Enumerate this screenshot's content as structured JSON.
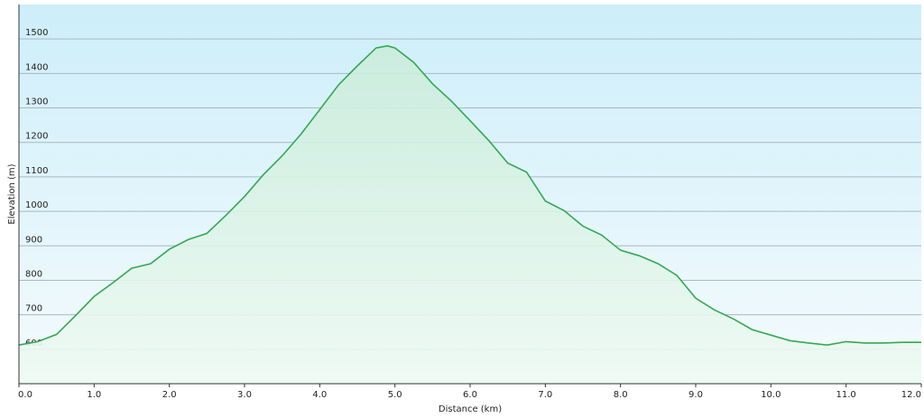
{
  "chart_data": {
    "type": "area",
    "x_label": "Distance (km)",
    "y_label": "Elevation (m)",
    "x": [
      0,
      0.25,
      0.5,
      0.75,
      1.0,
      1.25,
      1.5,
      1.75,
      2.0,
      2.25,
      2.5,
      2.75,
      3.0,
      3.25,
      3.5,
      3.75,
      4.0,
      4.25,
      4.5,
      4.75,
      4.9,
      5.0,
      5.25,
      5.5,
      5.75,
      6.0,
      6.25,
      6.5,
      6.75,
      7.0,
      7.25,
      7.5,
      7.75,
      8.0,
      8.25,
      8.5,
      8.75,
      9.0,
      9.25,
      9.5,
      9.75,
      10.0,
      10.25,
      10.5,
      10.75,
      11.0,
      11.25,
      11.5,
      11.75,
      12.0
    ],
    "values": [
      612,
      622,
      643,
      697,
      753,
      793,
      835,
      848,
      890,
      918,
      936,
      988,
      1043,
      1106,
      1161,
      1224,
      1295,
      1367,
      1422,
      1474,
      1480,
      1474,
      1432,
      1370,
      1320,
      1263,
      1205,
      1140,
      1114,
      1030,
      1002,
      957,
      931,
      887,
      871,
      848,
      814,
      748,
      714,
      688,
      657,
      641,
      625,
      618,
      612,
      622,
      618,
      618,
      620,
      620
    ],
    "color": "#34a853",
    "xlim": [
      0,
      12
    ],
    "ylim": [
      500,
      1600
    ],
    "xticks": [
      {
        "value": 0,
        "label": "0.0"
      },
      {
        "value": 1,
        "label": "1.0"
      },
      {
        "value": 2,
        "label": "2.0"
      },
      {
        "value": 3,
        "label": "3.0"
      },
      {
        "value": 4,
        "label": "4.0"
      },
      {
        "value": 5,
        "label": "5.0"
      },
      {
        "value": 6,
        "label": "6.0"
      },
      {
        "value": 7,
        "label": "7.0"
      },
      {
        "value": 8,
        "label": "8.0"
      },
      {
        "value": 9,
        "label": "9.0"
      },
      {
        "value": 10,
        "label": "10.0"
      },
      {
        "value": 11,
        "label": "11.0"
      },
      {
        "value": 12,
        "label": "12.0"
      }
    ],
    "yticks": [
      600,
      700,
      800,
      900,
      1000,
      1100,
      1200,
      1300,
      1400,
      1500
    ],
    "grid": true
  }
}
